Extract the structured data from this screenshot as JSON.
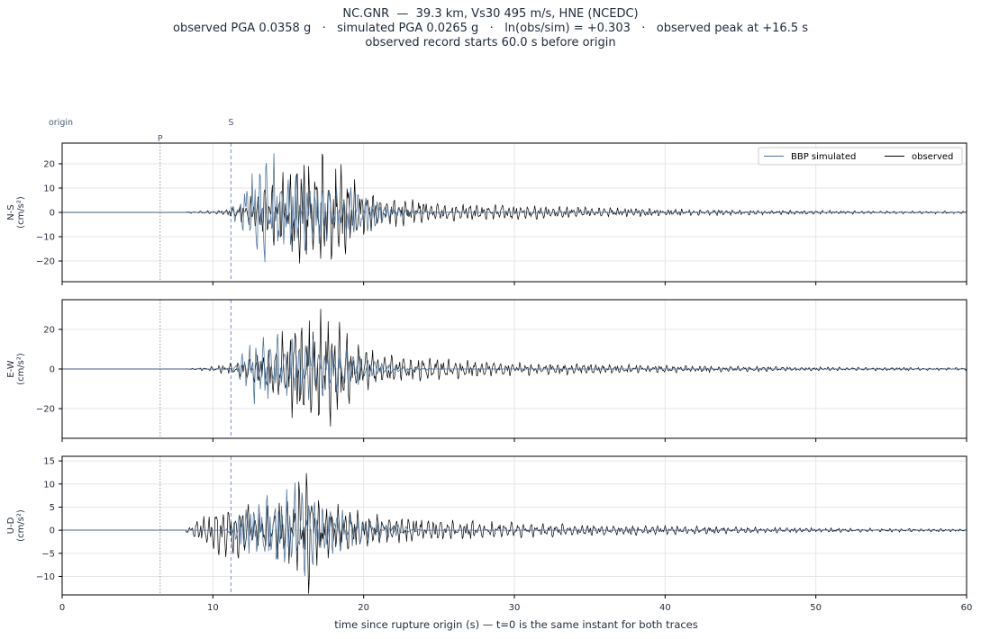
{
  "title": {
    "line1": "NC.GNR  —  39.3 km, Vs30 495 m/s, HNE (NCEDC)",
    "line2": "observed PGA 0.0358 g   ·   simulated PGA 0.0265 g   ·   ln(obs/sim) = +0.303   ·   observed peak at +16.5 s",
    "line3": "observed record starts 60.0 s before origin"
  },
  "chart_data": {
    "type": "line",
    "xlabel": "time since rupture origin (s)   —   t=0 is the same instant for both traces",
    "xlim": [
      0,
      60
    ],
    "xticks": [
      0,
      10,
      20,
      30,
      40,
      50,
      60
    ],
    "grid": true,
    "legend": {
      "placement": "top-right",
      "entries": [
        "BBP simulated",
        "observed"
      ]
    },
    "colors": {
      "simulated": "#4a6f96",
      "observed": "#000000",
      "s_marker": "#7b8fd8",
      "p_marker": "#999999"
    },
    "markers": {
      "origin": {
        "label": "origin",
        "t": 0
      },
      "P": {
        "label": "P",
        "t": 6.5
      },
      "S": {
        "label": "S",
        "t": 11.2
      }
    },
    "panels": [
      {
        "name": "N-S",
        "ylabel": "N-S\n(cm/s²)",
        "ylim": [
          -28.5,
          28.5
        ],
        "yticks": [
          -20,
          -10,
          0,
          10,
          20
        ],
        "envelope_observed": [
          [
            8.5,
            0.4
          ],
          [
            9.5,
            0.6
          ],
          [
            10.5,
            1.2
          ],
          [
            11.2,
            2
          ],
          [
            12,
            5
          ],
          [
            13,
            9
          ],
          [
            14,
            14
          ],
          [
            15,
            18
          ],
          [
            16,
            22
          ],
          [
            17,
            24
          ],
          [
            18,
            25
          ],
          [
            19,
            16
          ],
          [
            20,
            10
          ],
          [
            21,
            7
          ],
          [
            22,
            6
          ],
          [
            24,
            5
          ],
          [
            26,
            4
          ],
          [
            28,
            3.5
          ],
          [
            30,
            3
          ],
          [
            33,
            2.5
          ],
          [
            36,
            2
          ],
          [
            40,
            1.6
          ],
          [
            45,
            1.1
          ],
          [
            50,
            0.8
          ],
          [
            55,
            0.6
          ],
          [
            60,
            0.5
          ]
        ],
        "envelope_simulated": [
          [
            11.2,
            0.5
          ],
          [
            11.6,
            6
          ],
          [
            12.3,
            14
          ],
          [
            13,
            22
          ],
          [
            13.5,
            26
          ],
          [
            14.5,
            23
          ],
          [
            15.5,
            18
          ],
          [
            16.5,
            14
          ],
          [
            17.5,
            12
          ],
          [
            18.5,
            11
          ],
          [
            19.5,
            10
          ],
          [
            20.5,
            7
          ],
          [
            21.5,
            4
          ],
          [
            22.5,
            2
          ],
          [
            24,
            0.8
          ],
          [
            26,
            0
          ]
        ]
      },
      {
        "name": "E-W",
        "ylabel": "E-W\n(cm/s²)",
        "ylim": [
          -35,
          35
        ],
        "yticks": [
          -20,
          0,
          20
        ],
        "envelope_observed": [
          [
            8.5,
            0.3
          ],
          [
            9.5,
            0.8
          ],
          [
            10.5,
            2
          ],
          [
            11.2,
            3
          ],
          [
            12,
            6
          ],
          [
            13,
            10
          ],
          [
            14,
            15
          ],
          [
            15,
            22
          ],
          [
            16,
            33
          ],
          [
            17,
            30
          ],
          [
            18,
            32
          ],
          [
            19,
            18
          ],
          [
            20,
            12
          ],
          [
            21,
            8
          ],
          [
            22,
            7
          ],
          [
            24,
            6
          ],
          [
            26,
            5
          ],
          [
            28,
            4
          ],
          [
            30,
            3.5
          ],
          [
            33,
            3
          ],
          [
            36,
            2.5
          ],
          [
            40,
            2
          ],
          [
            45,
            1.4
          ],
          [
            50,
            1
          ],
          [
            55,
            0.8
          ],
          [
            60,
            0.7
          ]
        ],
        "envelope_simulated": [
          [
            11.2,
            0.5
          ],
          [
            11.6,
            5
          ],
          [
            12.3,
            14
          ],
          [
            13,
            20
          ],
          [
            14,
            18
          ],
          [
            15,
            17
          ],
          [
            16,
            16
          ],
          [
            17,
            15
          ],
          [
            18,
            13
          ],
          [
            19,
            10
          ],
          [
            20,
            7
          ],
          [
            21,
            4
          ],
          [
            22,
            2.5
          ],
          [
            23.5,
            1
          ],
          [
            25,
            0
          ]
        ]
      },
      {
        "name": "U-D",
        "ylabel": "U-D\n(cm/s²)",
        "ylim": [
          -14,
          16
        ],
        "yticks": [
          -10,
          -5,
          0,
          5,
          10,
          15
        ],
        "envelope_observed": [
          [
            8.5,
            0.8
          ],
          [
            9.3,
            4
          ],
          [
            10,
            6
          ],
          [
            11,
            7
          ],
          [
            12,
            6
          ],
          [
            13,
            5
          ],
          [
            14,
            6
          ],
          [
            15,
            7
          ],
          [
            16,
            12
          ],
          [
            16.5,
            14.5
          ],
          [
            17,
            7
          ],
          [
            18,
            6
          ],
          [
            19,
            5
          ],
          [
            20,
            4
          ],
          [
            22,
            3
          ],
          [
            25,
            2.5
          ],
          [
            28,
            2
          ],
          [
            32,
            1.5
          ],
          [
            36,
            1.2
          ],
          [
            40,
            1
          ],
          [
            45,
            0.7
          ],
          [
            50,
            0.5
          ],
          [
            55,
            0.4
          ],
          [
            60,
            0.3
          ]
        ],
        "envelope_simulated": [
          [
            11.2,
            0.5
          ],
          [
            11.6,
            4
          ],
          [
            12.3,
            6
          ],
          [
            13,
            7
          ],
          [
            14,
            8
          ],
          [
            15,
            9
          ],
          [
            16,
            12
          ],
          [
            17,
            7
          ],
          [
            18,
            5
          ],
          [
            19,
            4
          ],
          [
            20,
            3
          ],
          [
            21,
            2
          ],
          [
            22.5,
            1
          ],
          [
            24,
            0
          ]
        ]
      }
    ]
  }
}
